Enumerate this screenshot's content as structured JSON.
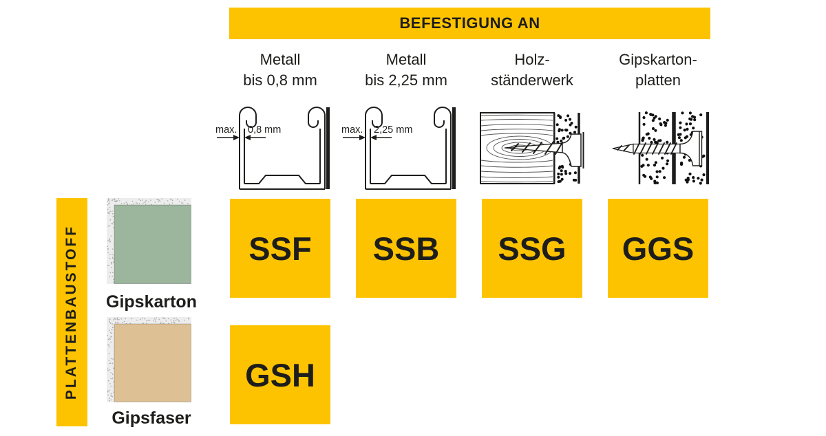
{
  "header": {
    "title": "BEFESTIGUNG AN"
  },
  "sidebar": {
    "label": "PLATTENBAUSTOFF"
  },
  "fastening_columns": [
    {
      "label_line1": "Metall",
      "label_line2": "bis 0,8 mm",
      "drawing": "metal-profile",
      "annotation": {
        "max": "max.",
        "dimension": "0,8 mm"
      }
    },
    {
      "label_line1": "Metall",
      "label_line2": "bis 2,25 mm",
      "drawing": "metal-profile",
      "annotation": {
        "max": "max.",
        "dimension": "2,25 mm"
      }
    },
    {
      "label_line1": "Holz-",
      "label_line2": "ständerwerk",
      "drawing": "wood-stud-with-screw"
    },
    {
      "label_line1": "Gipskarton-",
      "label_line2": "platten",
      "drawing": "plasterboard-with-screw"
    }
  ],
  "materials": [
    {
      "name": "Gipskarton",
      "swatch_color": "#9cb69e",
      "codes": [
        "SSF",
        "SSB",
        "SSG",
        "GGS"
      ]
    },
    {
      "name": "Gipsfaser",
      "swatch_color": "#ddc094",
      "codes": [
        "GSH"
      ]
    }
  ],
  "colors": {
    "accent_yellow": "#fdc300",
    "ink": "#1d1d1b",
    "board_green": "#9cb69e",
    "board_tan": "#ddc094",
    "edge_gray": "#ededed"
  }
}
